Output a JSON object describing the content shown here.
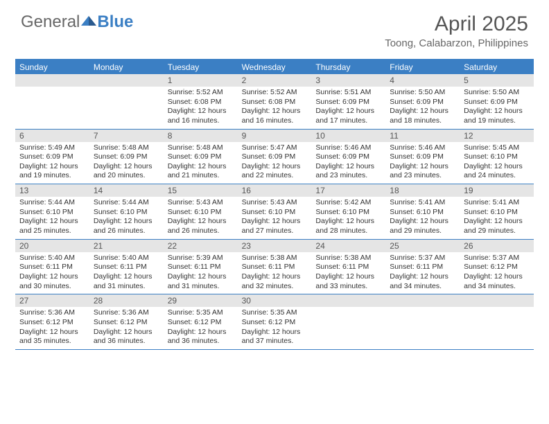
{
  "logo": {
    "part1": "General",
    "part2": "Blue"
  },
  "title": "April 2025",
  "location": "Toong, Calabarzon, Philippines",
  "colors": {
    "brand": "#3b7fc4",
    "header_bg": "#3b7fc4",
    "header_text": "#ffffff",
    "daynum_bg": "#e5e5e5",
    "text": "#333333",
    "border": "#3b7fc4"
  },
  "day_names": [
    "Sunday",
    "Monday",
    "Tuesday",
    "Wednesday",
    "Thursday",
    "Friday",
    "Saturday"
  ],
  "weeks": [
    [
      null,
      null,
      {
        "n": "1",
        "sunrise": "5:52 AM",
        "sunset": "6:08 PM",
        "daylight": "12 hours and 16 minutes."
      },
      {
        "n": "2",
        "sunrise": "5:52 AM",
        "sunset": "6:08 PM",
        "daylight": "12 hours and 16 minutes."
      },
      {
        "n": "3",
        "sunrise": "5:51 AM",
        "sunset": "6:09 PM",
        "daylight": "12 hours and 17 minutes."
      },
      {
        "n": "4",
        "sunrise": "5:50 AM",
        "sunset": "6:09 PM",
        "daylight": "12 hours and 18 minutes."
      },
      {
        "n": "5",
        "sunrise": "5:50 AM",
        "sunset": "6:09 PM",
        "daylight": "12 hours and 19 minutes."
      }
    ],
    [
      {
        "n": "6",
        "sunrise": "5:49 AM",
        "sunset": "6:09 PM",
        "daylight": "12 hours and 19 minutes."
      },
      {
        "n": "7",
        "sunrise": "5:48 AM",
        "sunset": "6:09 PM",
        "daylight": "12 hours and 20 minutes."
      },
      {
        "n": "8",
        "sunrise": "5:48 AM",
        "sunset": "6:09 PM",
        "daylight": "12 hours and 21 minutes."
      },
      {
        "n": "9",
        "sunrise": "5:47 AM",
        "sunset": "6:09 PM",
        "daylight": "12 hours and 22 minutes."
      },
      {
        "n": "10",
        "sunrise": "5:46 AM",
        "sunset": "6:09 PM",
        "daylight": "12 hours and 23 minutes."
      },
      {
        "n": "11",
        "sunrise": "5:46 AM",
        "sunset": "6:09 PM",
        "daylight": "12 hours and 23 minutes."
      },
      {
        "n": "12",
        "sunrise": "5:45 AM",
        "sunset": "6:10 PM",
        "daylight": "12 hours and 24 minutes."
      }
    ],
    [
      {
        "n": "13",
        "sunrise": "5:44 AM",
        "sunset": "6:10 PM",
        "daylight": "12 hours and 25 minutes."
      },
      {
        "n": "14",
        "sunrise": "5:44 AM",
        "sunset": "6:10 PM",
        "daylight": "12 hours and 26 minutes."
      },
      {
        "n": "15",
        "sunrise": "5:43 AM",
        "sunset": "6:10 PM",
        "daylight": "12 hours and 26 minutes."
      },
      {
        "n": "16",
        "sunrise": "5:43 AM",
        "sunset": "6:10 PM",
        "daylight": "12 hours and 27 minutes."
      },
      {
        "n": "17",
        "sunrise": "5:42 AM",
        "sunset": "6:10 PM",
        "daylight": "12 hours and 28 minutes."
      },
      {
        "n": "18",
        "sunrise": "5:41 AM",
        "sunset": "6:10 PM",
        "daylight": "12 hours and 29 minutes."
      },
      {
        "n": "19",
        "sunrise": "5:41 AM",
        "sunset": "6:10 PM",
        "daylight": "12 hours and 29 minutes."
      }
    ],
    [
      {
        "n": "20",
        "sunrise": "5:40 AM",
        "sunset": "6:11 PM",
        "daylight": "12 hours and 30 minutes."
      },
      {
        "n": "21",
        "sunrise": "5:40 AM",
        "sunset": "6:11 PM",
        "daylight": "12 hours and 31 minutes."
      },
      {
        "n": "22",
        "sunrise": "5:39 AM",
        "sunset": "6:11 PM",
        "daylight": "12 hours and 31 minutes."
      },
      {
        "n": "23",
        "sunrise": "5:38 AM",
        "sunset": "6:11 PM",
        "daylight": "12 hours and 32 minutes."
      },
      {
        "n": "24",
        "sunrise": "5:38 AM",
        "sunset": "6:11 PM",
        "daylight": "12 hours and 33 minutes."
      },
      {
        "n": "25",
        "sunrise": "5:37 AM",
        "sunset": "6:11 PM",
        "daylight": "12 hours and 34 minutes."
      },
      {
        "n": "26",
        "sunrise": "5:37 AM",
        "sunset": "6:12 PM",
        "daylight": "12 hours and 34 minutes."
      }
    ],
    [
      {
        "n": "27",
        "sunrise": "5:36 AM",
        "sunset": "6:12 PM",
        "daylight": "12 hours and 35 minutes."
      },
      {
        "n": "28",
        "sunrise": "5:36 AM",
        "sunset": "6:12 PM",
        "daylight": "12 hours and 36 minutes."
      },
      {
        "n": "29",
        "sunrise": "5:35 AM",
        "sunset": "6:12 PM",
        "daylight": "12 hours and 36 minutes."
      },
      {
        "n": "30",
        "sunrise": "5:35 AM",
        "sunset": "6:12 PM",
        "daylight": "12 hours and 37 minutes."
      },
      null,
      null,
      null
    ]
  ],
  "labels": {
    "sunrise": "Sunrise:",
    "sunset": "Sunset:",
    "daylight": "Daylight:"
  }
}
